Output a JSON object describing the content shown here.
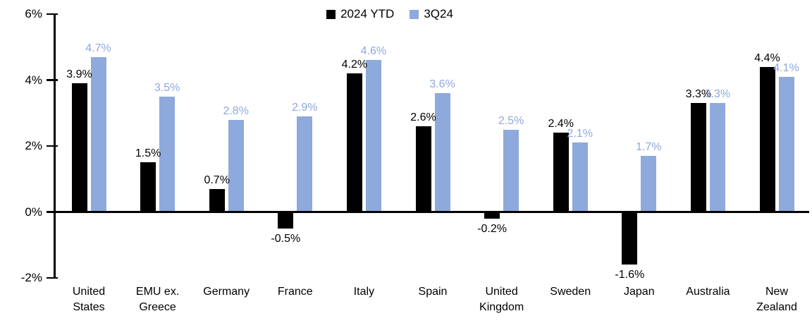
{
  "legend": {
    "items": [
      {
        "label": "2024 YTD"
      },
      {
        "label": "3Q24"
      }
    ]
  },
  "colors": {
    "series1": "#000000",
    "series2": "#8EA9DB",
    "axis": "#000000",
    "background": "#FFFFFF"
  },
  "chart_data": {
    "type": "bar",
    "categories": [
      "United States",
      "EMU ex. Greece",
      "Germany",
      "France",
      "Italy",
      "Spain",
      "United Kingdom",
      "Sweden",
      "Japan",
      "Australia",
      "New Zealand"
    ],
    "series": [
      {
        "name": "2024 YTD",
        "color": "#000000",
        "values": [
          3.9,
          1.5,
          0.7,
          -0.5,
          4.2,
          2.6,
          -0.2,
          2.4,
          -1.6,
          3.3,
          4.4
        ]
      },
      {
        "name": "3Q24",
        "color": "#8EA9DB",
        "values": [
          4.7,
          3.5,
          2.8,
          2.9,
          4.6,
          3.6,
          2.5,
          2.1,
          1.7,
          3.3,
          4.1
        ]
      }
    ],
    "data_labels": {
      "series1": [
        "3.9%",
        "1.5%",
        "0.7%",
        "-0.5%",
        "4.2%",
        "2.6%",
        "-0.2%",
        "2.4%",
        "-1.6%",
        "3.3%",
        "4.4%"
      ],
      "series2": [
        "4.7%",
        "3.5%",
        "2.8%",
        "2.9%",
        "4.6%",
        "3.6%",
        "2.5%",
        "2.1%",
        "1.7%",
        "3.3%",
        "4.1%"
      ]
    },
    "title": "",
    "xlabel": "",
    "ylabel": "",
    "ylim": [
      -2,
      6
    ],
    "y_ticks": [
      "6%",
      "4%",
      "2%",
      "0%",
      "-2%"
    ],
    "y_tick_values": [
      6,
      4,
      2,
      0,
      -2
    ],
    "value_suffix": "%",
    "grid": false,
    "legend_position": "top-center"
  }
}
